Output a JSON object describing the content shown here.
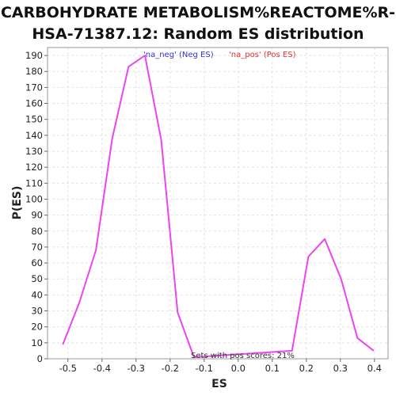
{
  "chart_data": {
    "type": "line",
    "title_lines": [
      "CARBOHYDRATE METABOLISM%REACTOME%R-",
      "HSA-71387.12: Random ES distribution"
    ],
    "xlabel": "ES",
    "ylabel": "P(ES)",
    "xlim": [
      -0.56,
      0.44
    ],
    "ylim": [
      0,
      195
    ],
    "xticks": [
      -0.5,
      -0.4,
      -0.3,
      -0.2,
      -0.1,
      0.0,
      0.1,
      0.2,
      0.3,
      0.4
    ],
    "xtick_labels": [
      "-0.5",
      "-0.4",
      "-0.3",
      "-0.2",
      "-0.1",
      "0.0",
      "0.1",
      "0.2",
      "0.3",
      "0.4"
    ],
    "yticks": [
      0,
      10,
      20,
      30,
      40,
      50,
      60,
      70,
      80,
      90,
      100,
      110,
      120,
      130,
      140,
      150,
      160,
      170,
      180,
      190
    ],
    "ytick_labels": [
      "0",
      "10",
      "20",
      "30",
      "40",
      "50",
      "60",
      "70",
      "80",
      "90",
      "100",
      "110",
      "120",
      "130",
      "140",
      "150",
      "160",
      "170",
      "180",
      "190"
    ],
    "grid": true,
    "legend": [
      {
        "label": "'na_neg' (Neg ES)",
        "color": "#3333cc"
      },
      {
        "label": "'na_pos' (Pos ES)",
        "color": "#e03030"
      }
    ],
    "annotation": "Sets with pos scores: 21%",
    "line_color": "#ee44ee",
    "series": [
      {
        "x": [
          -0.515,
          -0.467,
          -0.418,
          -0.37,
          -0.322,
          -0.274,
          -0.226,
          -0.178,
          -0.13,
          0.158,
          0.206,
          0.254,
          0.302,
          0.35,
          0.398
        ],
        "y": [
          9,
          35,
          68,
          138,
          183,
          190,
          137,
          29,
          1,
          5,
          64,
          75,
          50,
          13,
          5
        ]
      }
    ]
  }
}
